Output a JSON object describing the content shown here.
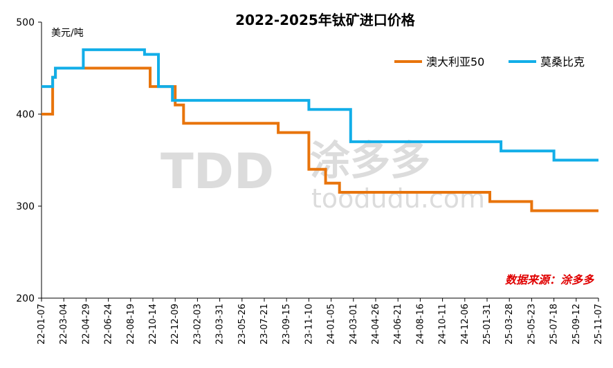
{
  "chart_data": {
    "type": "line",
    "title": "2022-2025年钛矿进口价格",
    "ylabel": "美元/吨",
    "ylim": [
      200,
      500
    ],
    "yticks": [
      200,
      300,
      400,
      500
    ],
    "xlim": [
      "2022-01-07",
      "2025-11-07"
    ],
    "xtick_labels": [
      "22-01-07",
      "22-03-04",
      "22-04-29",
      "22-06-24",
      "22-08-19",
      "22-10-14",
      "22-12-09",
      "23-02-03",
      "23-03-31",
      "23-05-26",
      "23-07-21",
      "23-09-15",
      "23-11-10",
      "24-01-05",
      "24-03-01",
      "24-04-26",
      "24-06-21",
      "24-08-16",
      "24-10-11",
      "24-12-06",
      "25-01-31",
      "25-03-28",
      "25-05-23",
      "25-07-18",
      "25-09-12",
      "25-11-07"
    ],
    "legend_position": "top-right",
    "grid": false,
    "source": "数据来源：涂多多",
    "watermark": {
      "logo": "TDD",
      "brand": "涂多多",
      "site": "toodudu.com"
    },
    "series": [
      {
        "name": "澳大利亚50",
        "color": "#E8740C",
        "points": [
          [
            "2022-01-07",
            400
          ],
          [
            "2022-02-04",
            400
          ],
          [
            "2022-02-04",
            440
          ],
          [
            "2022-02-11",
            440
          ],
          [
            "2022-02-11",
            450
          ],
          [
            "2022-10-07",
            450
          ],
          [
            "2022-10-07",
            430
          ],
          [
            "2022-12-09",
            430
          ],
          [
            "2022-12-09",
            410
          ],
          [
            "2022-12-30",
            410
          ],
          [
            "2022-12-30",
            390
          ],
          [
            "2023-08-25",
            390
          ],
          [
            "2023-08-25",
            380
          ],
          [
            "2023-11-10",
            380
          ],
          [
            "2023-11-10",
            340
          ],
          [
            "2023-12-22",
            340
          ],
          [
            "2023-12-22",
            325
          ],
          [
            "2024-01-26",
            325
          ],
          [
            "2024-01-26",
            315
          ],
          [
            "2025-02-07",
            315
          ],
          [
            "2025-02-07",
            305
          ],
          [
            "2025-05-23",
            305
          ],
          [
            "2025-05-23",
            295
          ],
          [
            "2025-11-07",
            295
          ]
        ]
      },
      {
        "name": "莫桑比克",
        "color": "#12AEE8",
        "points": [
          [
            "2022-01-07",
            430
          ],
          [
            "2022-02-04",
            430
          ],
          [
            "2022-02-04",
            440
          ],
          [
            "2022-02-11",
            440
          ],
          [
            "2022-02-11",
            450
          ],
          [
            "2022-04-22",
            450
          ],
          [
            "2022-04-22",
            470
          ],
          [
            "2022-09-23",
            470
          ],
          [
            "2022-09-23",
            465
          ],
          [
            "2022-10-28",
            465
          ],
          [
            "2022-10-28",
            430
          ],
          [
            "2022-12-02",
            430
          ],
          [
            "2022-12-02",
            415
          ],
          [
            "2023-11-10",
            415
          ],
          [
            "2023-11-10",
            405
          ],
          [
            "2024-02-23",
            405
          ],
          [
            "2024-02-23",
            370
          ],
          [
            "2025-03-07",
            370
          ],
          [
            "2025-03-07",
            360
          ],
          [
            "2025-07-18",
            360
          ],
          [
            "2025-07-18",
            350
          ],
          [
            "2025-11-07",
            350
          ]
        ]
      }
    ]
  }
}
